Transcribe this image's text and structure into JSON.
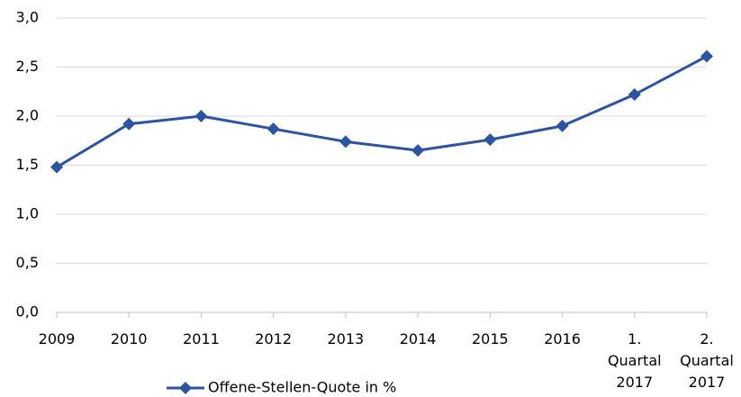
{
  "chart_data": {
    "type": "line",
    "categories": [
      "2009",
      "2010",
      "2011",
      "2012",
      "2013",
      "2014",
      "2015",
      "2016",
      "1.\nQuartal\n2017",
      "2.\nQuartal\n2017"
    ],
    "series": [
      {
        "name": "Offene-Stellen-Quote in %",
        "color": "#2e54a0",
        "values": [
          1.48,
          1.92,
          2.0,
          1.87,
          1.74,
          1.65,
          1.76,
          1.9,
          2.22,
          2.61
        ]
      }
    ],
    "ylim": [
      0,
      3
    ],
    "yticks": [
      {
        "value": 0,
        "label": "0,0"
      },
      {
        "value": 0.5,
        "label": "0,5"
      },
      {
        "value": 1,
        "label": "1,0"
      },
      {
        "value": 1.5,
        "label": "1,5"
      },
      {
        "value": 2,
        "label": "2,0"
      },
      {
        "value": 2.5,
        "label": "2,5"
      },
      {
        "value": 3,
        "label": "3,0"
      }
    ],
    "grid": true,
    "legend": "bottom"
  }
}
